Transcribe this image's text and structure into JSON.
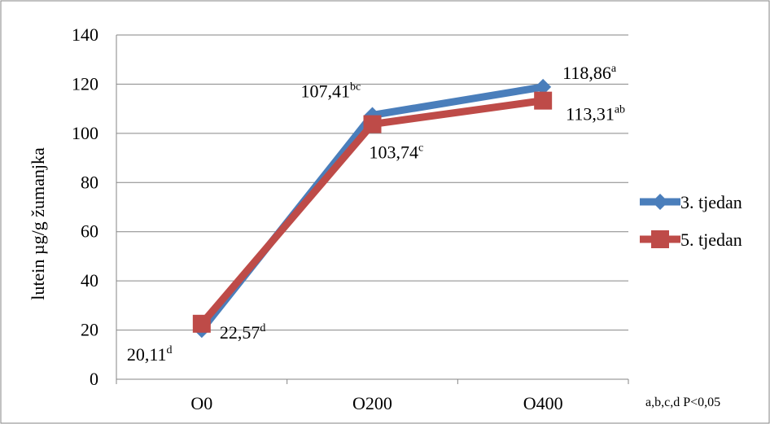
{
  "chart_data": {
    "type": "line",
    "title": "",
    "xlabel": "",
    "ylabel": "lutein µg/g žumanjka",
    "categories": [
      "O0",
      "O200",
      "O400"
    ],
    "ylim": [
      0,
      140
    ],
    "yticks": [
      0,
      20,
      40,
      60,
      80,
      100,
      120,
      140
    ],
    "grid": true,
    "legend_position": "right",
    "series": [
      {
        "name": "3. tjedan",
        "color": "#4A7EBB",
        "marker": "diamond",
        "values": [
          20.11,
          107.41,
          118.86
        ],
        "labels": [
          {
            "text": "20,11",
            "sup": "d"
          },
          {
            "text": "107,41",
            "sup": "bc"
          },
          {
            "text": "118,86",
            "sup": "a"
          }
        ]
      },
      {
        "name": "5. tjedan",
        "color": "#BE4B48",
        "marker": "square",
        "values": [
          22.57,
          103.74,
          113.31
        ],
        "labels": [
          {
            "text": "22,57",
            "sup": "d"
          },
          {
            "text": "103,74",
            "sup": "c"
          },
          {
            "text": "113,31",
            "sup": "ab"
          }
        ]
      }
    ],
    "note": "a,b,c,d P<0,05"
  }
}
